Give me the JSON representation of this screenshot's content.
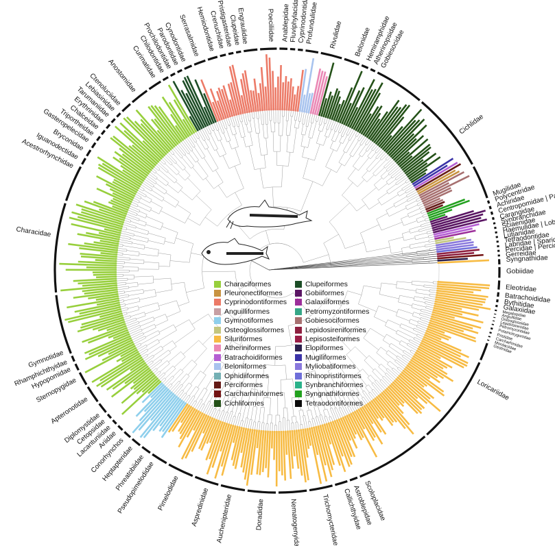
{
  "title": "",
  "colors": {
    "Characiformes": "#97cf3c",
    "Pleuronectiformes": "#c89341",
    "Cyprinodontiformes": "#ec7a67",
    "Anguilliformes": "#c79fa3",
    "Gymnotiformes": "#8ecfec",
    "Osteoglossiformes": "#c4c67e",
    "Siluriformes": "#f7bb43",
    "Atheriniformes": "#ea88b5",
    "Batrachoidiformes": "#b55fd3",
    "Beloniformes": "#a8c3ee",
    "Ophidiiformes": "#74b0b4",
    "Perciformes": "#651b17",
    "Carcharhiniformes": "#731212",
    "Cichliformes": "#245118",
    "Clupeiformes": "#1c4d26",
    "Gobiiformes": "#5a1563",
    "Galaxiiformes": "#9c2e9a",
    "Petromyzontiformes": "#35a787",
    "Gobiesociformes": "#a77070",
    "Lepidosireniformes": "#8e1f3f",
    "Lepisosteiformes": "#9a1c45",
    "Elopiformes": "#2a1f4c",
    "Mugiliformes": "#3b33a8",
    "Myliobatiformes": "#8978dd",
    "Rhinopristiformes": "#6e6ed9",
    "Synbranchiformes": "#2bb28a",
    "Syngnathiformes": "#22a11e",
    "Tetraodontiformes": "#0c0c0c"
  },
  "legend": [
    {
      "name": "Characiformes",
      "color": "#97cf3c"
    },
    {
      "name": "Pleuronectiformes",
      "color": "#c89341"
    },
    {
      "name": "Cyprinodontiformes",
      "color": "#ec7a67"
    },
    {
      "name": "Anguilliformes",
      "color": "#c79fa3"
    },
    {
      "name": "Gymnotiformes",
      "color": "#8ecfec"
    },
    {
      "name": "Osteoglossiformes",
      "color": "#c4c67e"
    },
    {
      "name": "Siluriformes",
      "color": "#f7bb43"
    },
    {
      "name": "Atheriniformes",
      "color": "#ea88b5"
    },
    {
      "name": "Batrachoidiformes",
      "color": "#b55fd3"
    },
    {
      "name": "Beloniformes",
      "color": "#a8c3ee"
    },
    {
      "name": "Ophidiiformes",
      "color": "#74b0b4"
    },
    {
      "name": "Perciformes",
      "color": "#651b17"
    },
    {
      "name": "Carcharhiniformes",
      "color": "#731212"
    },
    {
      "name": "Cichliformes",
      "color": "#245118"
    },
    {
      "name": "Clupeiformes",
      "color": "#1c4d26"
    },
    {
      "name": "Gobiiformes",
      "color": "#5a1563"
    },
    {
      "name": "Galaxiiformes",
      "color": "#9c2e9a"
    },
    {
      "name": "Petromyzontiformes",
      "color": "#35a787"
    },
    {
      "name": "Gobiesociformes",
      "color": "#a77070"
    },
    {
      "name": "Lepidosireniformes",
      "color": "#8e1f3f"
    },
    {
      "name": "Lepisosteiformes",
      "color": "#9a1c45"
    },
    {
      "name": "Elopiformes",
      "color": "#2a1f4c"
    },
    {
      "name": "Mugiliformes",
      "color": "#3b33a8"
    },
    {
      "name": "Myliobatiformes",
      "color": "#8978dd"
    },
    {
      "name": "Rhinopristiformes",
      "color": "#6e6ed9"
    },
    {
      "name": "Synbranchiformes",
      "color": "#2bb28a"
    },
    {
      "name": "Syngnathiformes",
      "color": "#22a11e"
    },
    {
      "name": "Tetraodontiformes",
      "color": "#0c0c0c"
    }
  ],
  "clades": [
    {
      "order": "Siluriformes",
      "from": 0,
      "to": 154
    },
    {
      "order": "Gymnotiformes",
      "from": 154,
      "to": 169
    },
    {
      "order": "Characiformes",
      "from": 169,
      "to": 302
    },
    {
      "order": "Clupeiformes",
      "from": 302,
      "to": 312
    },
    {
      "order": "Cyprinodontiformes",
      "from": 312,
      "to": 350
    },
    {
      "order": "Beloniformes",
      "from": 350,
      "to": 355
    },
    {
      "order": "Atheriniformes",
      "from": 355,
      "to": 359
    },
    {
      "order": "Cichliformes",
      "from": 359,
      "to": 413
    },
    {
      "order": "Mugiliformes",
      "from": 413,
      "to": 414.5
    },
    {
      "order": "Batrachoidiformes",
      "from": 414.5,
      "to": 416
    },
    {
      "order": "Perciformes",
      "from": 416,
      "to": 417
    },
    {
      "order": "Pleuronectiformes",
      "from": 417,
      "to": 419
    },
    {
      "order": "Gobiesociformes",
      "from": 419,
      "to": 426
    },
    {
      "order": "Perciformes",
      "from": 426,
      "to": 428
    },
    {
      "order": "Syngnathiformes",
      "from": 428,
      "to": 431.5
    },
    {
      "order": "Gobiiformes",
      "from": 431.5,
      "to": 438
    },
    {
      "order": "Batrachoidiformes",
      "from": 438,
      "to": 439.5
    },
    {
      "order": "Galaxiiformes",
      "from": 439.5,
      "to": 441
    },
    {
      "order": "Osteoglossiformes",
      "from": 441,
      "to": 442.5
    },
    {
      "order": "Myliobatiformes",
      "from": 442.5,
      "to": 445.5
    },
    {
      "order": "Rhinopristiformes",
      "from": 445.5,
      "to": 447
    },
    {
      "order": "Lepidosireniformes",
      "from": 447,
      "to": 448.5
    },
    {
      "order": "Carcharhiniformes",
      "from": 448.5,
      "to": 449.5
    },
    {
      "order": "Elopiformes",
      "from": 449.5,
      "to": 450.5
    }
  ],
  "family_labels": [
    {
      "name": "Loricariidae",
      "angle": 29
    },
    {
      "name": "Scoloplacidae",
      "angle": 67
    },
    {
      "name": "Astroblepidae",
      "angle": 70
    },
    {
      "name": "Callichthyidae",
      "angle": 72.5
    },
    {
      "name": "Trichomycteridae",
      "angle": 78
    },
    {
      "name": "Nematogenyidae",
      "angle": 86
    },
    {
      "name": "Doradidae",
      "angle": 94
    },
    {
      "name": "Auchenipteridae",
      "angle": 102
    },
    {
      "name": "Aspredinidae",
      "angle": 108
    },
    {
      "name": "Pimelodidae",
      "angle": 116
    },
    {
      "name": "Pseudopimelodidae",
      "angle": 123
    },
    {
      "name": "Phreatobiidae",
      "angle": 126
    },
    {
      "name": "Heptapteridae",
      "angle": 129.5
    },
    {
      "name": "Conorhynchos",
      "angle": 132.5
    },
    {
      "name": "Ariidae",
      "angle": 135
    },
    {
      "name": "Lacantuniidae",
      "angle": 137
    },
    {
      "name": "Cetopsidae",
      "angle": 139
    },
    {
      "name": "Diplomystidae",
      "angle": 141
    },
    {
      "name": "Apteronotidae",
      "angle": 146
    },
    {
      "name": "Sternopygidae",
      "angle": 151.5
    },
    {
      "name": "Hypopomidae",
      "angle": 154.5
    },
    {
      "name": "Rhamphichthyidae",
      "angle": 156.5
    },
    {
      "name": "Gymnotidae",
      "angle": 159
    },
    {
      "name": "Characidae",
      "angle": 189
    },
    {
      "name": "Acestrorhynchidae",
      "angle": 207
    },
    {
      "name": "Iguanodectidae",
      "angle": 209.5
    },
    {
      "name": "Bryconidae",
      "angle": 212
    },
    {
      "name": "Gasteropelecidae",
      "angle": 214.5
    },
    {
      "name": "Triportheidae",
      "angle": 216.5
    },
    {
      "name": "Chalceidae",
      "angle": 218.5
    },
    {
      "name": "Erythrinidae",
      "angle": 220.5
    },
    {
      "name": "Tarumaniidae",
      "angle": 222.5
    },
    {
      "name": "Lebiasinidae",
      "angle": 224.5
    },
    {
      "name": "Ctenoluciidae",
      "angle": 226.5
    },
    {
      "name": "Anostomidae",
      "angle": 231.5
    },
    {
      "name": "Curimatidae",
      "angle": 237.5
    },
    {
      "name": "Chilodontidae",
      "angle": 240
    },
    {
      "name": "Prochilodontidae",
      "angle": 242
    },
    {
      "name": "Parodontidae",
      "angle": 244
    },
    {
      "name": "Cynodontidae",
      "angle": 246
    },
    {
      "name": "Serrasalmidae",
      "angle": 249.5
    },
    {
      "name": "Hemiodontidae",
      "angle": 253.5
    },
    {
      "name": "Crenuchidae",
      "angle": 256
    },
    {
      "name": "Pristigasteridae",
      "angle": 258
    },
    {
      "name": "Clupeidae",
      "angle": 260
    },
    {
      "name": "Engraulidae",
      "angle": 262
    },
    {
      "name": "Poeciliidae",
      "angle": 268.5
    },
    {
      "name": "Anablepidae",
      "angle": 272
    },
    {
      "name": "Fluviphylacidae",
      "angle": 274
    },
    {
      "name": "Cyprinodontidae",
      "angle": 276
    },
    {
      "name": "Profundulidae",
      "angle": 278
    },
    {
      "name": "Rivulidae",
      "angle": 284
    },
    {
      "name": "Belonidae",
      "angle": 290.5
    },
    {
      "name": "Hemiramphidae",
      "angle": 293.5
    },
    {
      "name": "Atherinopsidae",
      "angle": 295.5
    },
    {
      "name": "Gobiesocidae",
      "angle": 297.5
    },
    {
      "name": "Cichlidae",
      "angle": 323
    },
    {
      "name": "Mugilidae",
      "angle": 340.5
    },
    {
      "name": "Polycentridae",
      "angle": 342
    },
    {
      "name": "Achiridae",
      "angle": 343.5
    },
    {
      "name": "Centropomidae | Paralichthyidae",
      "angle": 345
    },
    {
      "name": "Carangidae",
      "angle": 346.5
    },
    {
      "name": "Synbranchidae",
      "angle": 347.7
    },
    {
      "name": "Sciaenidae",
      "angle": 348.9
    },
    {
      "name": "Haemulidae | Lobotidae",
      "angle": 350.1
    },
    {
      "name": "Lutjanidae",
      "angle": 351.3
    },
    {
      "name": "Tetraodontidae",
      "angle": 352.5
    },
    {
      "name": "Labridae | Sparidae",
      "angle": 353.7
    },
    {
      "name": "Percidae | Percichthyidae",
      "angle": 354.9
    },
    {
      "name": "Gerreidae",
      "angle": 356.1
    },
    {
      "name": "Syngnathidae",
      "angle": 357.3
    },
    {
      "name": "Gobiidae",
      "angle": 0.2
    },
    {
      "name": "Eleotridae",
      "angle": 4.2
    },
    {
      "name": "Batrachoididae",
      "angle": 6.3
    },
    {
      "name": "Bythitidae",
      "angle": 7.9
    },
    {
      "name": "Galaxiidae",
      "angle": 9.2
    },
    {
      "name": "Megalopidae",
      "angle": 10.4
    },
    {
      "name": "Anguillidae",
      "angle": 11.3
    },
    {
      "name": "Osteoglossidae",
      "angle": 12.2
    },
    {
      "name": "Lepidosirenidae",
      "angle": 13.1
    },
    {
      "name": "Petromyzontidae",
      "angle": 14
    },
    {
      "name": "Potamotrygonidae",
      "angle": 15.1
    },
    {
      "name": "Pristidae",
      "angle": 16.3
    },
    {
      "name": "Carcharhinidae",
      "angle": 17.3
    },
    {
      "name": "Mordaciidae",
      "angle": 18.3
    },
    {
      "name": "Geotriidae",
      "angle": 19.2
    }
  ]
}
